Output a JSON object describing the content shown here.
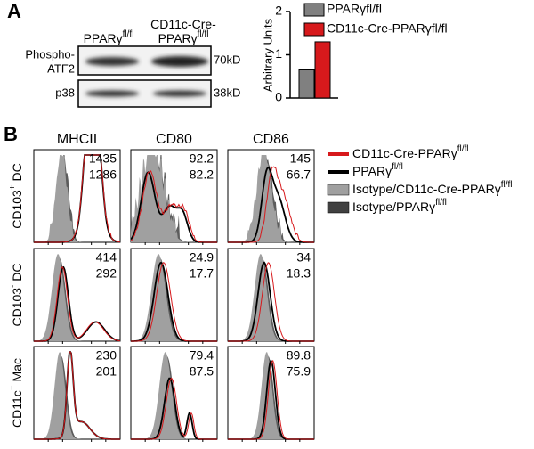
{
  "panel_a": {
    "label": "A",
    "blot": {
      "column_labels": [
        [
          [
            {
              "t": "PPARγ"
            },
            {
              "t": "fl/fl",
              "sup": true
            }
          ]
        ],
        [
          [
            {
              "t": "CD11c-Cre-"
            }
          ],
          [
            {
              "t": "PPARγ"
            },
            {
              "t": "fl/fl",
              "sup": true
            }
          ]
        ]
      ],
      "row_labels": [
        [
          "Phospho-",
          "ATF2"
        ],
        [
          "p38"
        ]
      ],
      "sizes": [
        "70kD",
        "38kD"
      ]
    }
  },
  "chart_data": {
    "type": "bar",
    "ylabel": "Arbitrary Units",
    "categories": [
      null
    ],
    "series": [
      {
        "name": "PPARγfl/fl",
        "color": "#808080",
        "values": [
          0.65
        ]
      },
      {
        "name": "CD11c-Cre-PPARγfl/fl",
        "color": "#d7191c",
        "values": [
          1.3
        ]
      }
    ],
    "ylim": [
      0,
      2
    ],
    "yticks": [
      0,
      1,
      2
    ]
  },
  "panel_b": {
    "label": "B",
    "columns": [
      "MHCII",
      "CD80",
      "CD86"
    ],
    "rows": [
      [
        {
          "t": "CD103"
        },
        {
          "t": "+",
          "sup": true
        },
        {
          "t": " DC"
        }
      ],
      [
        {
          "t": "CD103"
        },
        {
          "t": "-",
          "sup": true
        },
        {
          "t": " DC"
        }
      ],
      [
        {
          "t": "CD11c"
        },
        {
          "t": "+",
          "sup": true
        },
        {
          "t": " Mac"
        }
      ]
    ],
    "number_colors": [
      "#e0201b",
      "#000000"
    ],
    "values": [
      [
        [
          1435,
          1286
        ],
        [
          92.2,
          82.2
        ],
        [
          145,
          66.7
        ]
      ],
      [
        [
          414,
          292
        ],
        [
          24.9,
          17.7
        ],
        [
          34,
          18.3
        ]
      ],
      [
        [
          230,
          201
        ],
        [
          79.4,
          87.5
        ],
        [
          89.8,
          75.9
        ]
      ]
    ],
    "legend": [
      {
        "label": [
          {
            "t": "CD11c-Cre-PPARγ"
          },
          {
            "t": "fl/fl",
            "sup": true
          }
        ],
        "style": "line",
        "color": "#d7191c"
      },
      {
        "label": [
          {
            "t": "PPARγ"
          },
          {
            "t": "fl/fl",
            "sup": true
          }
        ],
        "style": "line",
        "color": "#000000"
      },
      {
        "label": [
          {
            "t": "Isotype/CD11c-Cre-PPARγ"
          },
          {
            "t": "fl/fl",
            "sup": true
          }
        ],
        "style": "fill",
        "color": "#a0a0a0"
      },
      {
        "label": [
          {
            "t": "Isotype/PPARγ"
          },
          {
            "t": "fl/fl",
            "sup": true
          }
        ],
        "style": "fill",
        "color": "#404040"
      }
    ]
  }
}
